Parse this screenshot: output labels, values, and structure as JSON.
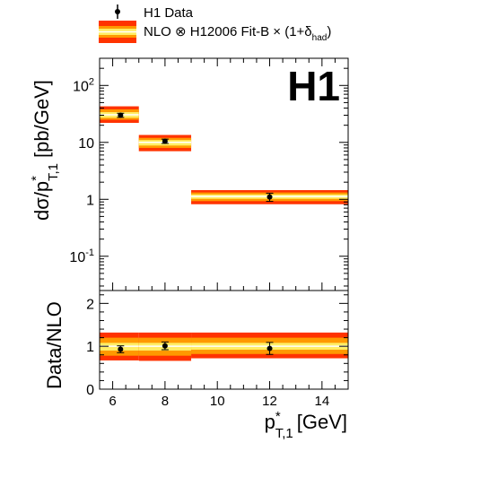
{
  "legend": {
    "data_label": "H1 Data",
    "nlo_prefix": "NLO ⊗ H12006 Fit-B × (1+δ",
    "nlo_sub": "had",
    "nlo_suffix": ")"
  },
  "experiment_logo": "H1",
  "colors": {
    "band_outer": "#ff3300",
    "band_middle": "#ff9900",
    "band_inner": "#ffee66",
    "central_line": "#ffffff",
    "marker": "#000000"
  },
  "chart_data": [
    {
      "type": "scatter",
      "panel": "cross-section",
      "ylabel": {
        "main": "dσ/p",
        "sup": "*",
        "sub": "T,1",
        "unit": "[pb/GeV]"
      },
      "yscale": "log",
      "ylim": [
        0.025,
        300
      ],
      "xlim": [
        5.5,
        15
      ],
      "ytick_labels": [
        {
          "value": 0.1,
          "base": "10",
          "exp": "-1"
        },
        {
          "value": 1,
          "base": "1",
          "exp": ""
        },
        {
          "value": 10,
          "base": "10",
          "exp": ""
        },
        {
          "value": 100,
          "base": "10",
          "exp": "2"
        }
      ],
      "data": [
        {
          "x": 6.3,
          "y": 30,
          "yerr_low": 2.5,
          "yerr_high": 2.5
        },
        {
          "x": 8.0,
          "y": 10.5,
          "yerr_low": 0.9,
          "yerr_high": 0.9
        },
        {
          "x": 12.0,
          "y": 1.1,
          "yerr_low": 0.18,
          "yerr_high": 0.18
        }
      ],
      "theory_bins": [
        {
          "xmin": 5.5,
          "xmax": 7,
          "outer": [
            22,
            43
          ],
          "middle": [
            25,
            38
          ],
          "inner": [
            27,
            34
          ],
          "central": 30.5
        },
        {
          "xmin": 7,
          "xmax": 9,
          "outer": [
            7.0,
            13.5
          ],
          "middle": [
            8.0,
            12.0
          ],
          "inner": [
            8.8,
            11.0
          ],
          "central": 10.0
        },
        {
          "xmin": 9,
          "xmax": 15,
          "outer": [
            0.82,
            1.45
          ],
          "middle": [
            0.93,
            1.32
          ],
          "inner": [
            1.02,
            1.22
          ],
          "central": 1.12
        }
      ]
    },
    {
      "type": "scatter",
      "panel": "ratio",
      "ylabel": "Data/NLO",
      "xlabel": {
        "main": "p",
        "sup": "*",
        "sub": "T,1",
        "unit": "[GeV]"
      },
      "ylim": [
        0,
        2.3
      ],
      "xlim": [
        5.5,
        15
      ],
      "ytick_labels": [
        "0",
        "1",
        "2"
      ],
      "xtick_labels": [
        "6",
        "8",
        "10",
        "12",
        "14"
      ],
      "data": [
        {
          "x": 6.3,
          "y": 0.93,
          "yerr_low": 0.08,
          "yerr_high": 0.08
        },
        {
          "x": 8.0,
          "y": 1.01,
          "yerr_low": 0.09,
          "yerr_high": 0.09
        },
        {
          "x": 12.0,
          "y": 0.95,
          "yerr_low": 0.14,
          "yerr_high": 0.14
        }
      ],
      "theory_bins": [
        {
          "xmin": 5.5,
          "xmax": 7,
          "outer": [
            0.67,
            1.32
          ],
          "middle": [
            0.78,
            1.2
          ],
          "inner": [
            0.9,
            1.08
          ],
          "central": 1.0
        },
        {
          "xmin": 7,
          "xmax": 9,
          "outer": [
            0.66,
            1.32
          ],
          "middle": [
            0.78,
            1.2
          ],
          "inner": [
            0.9,
            1.08
          ],
          "central": 1.0
        },
        {
          "xmin": 9,
          "xmax": 15,
          "outer": [
            0.72,
            1.32
          ],
          "middle": [
            0.82,
            1.2
          ],
          "inner": [
            0.92,
            1.08
          ],
          "central": 1.0
        }
      ]
    }
  ]
}
